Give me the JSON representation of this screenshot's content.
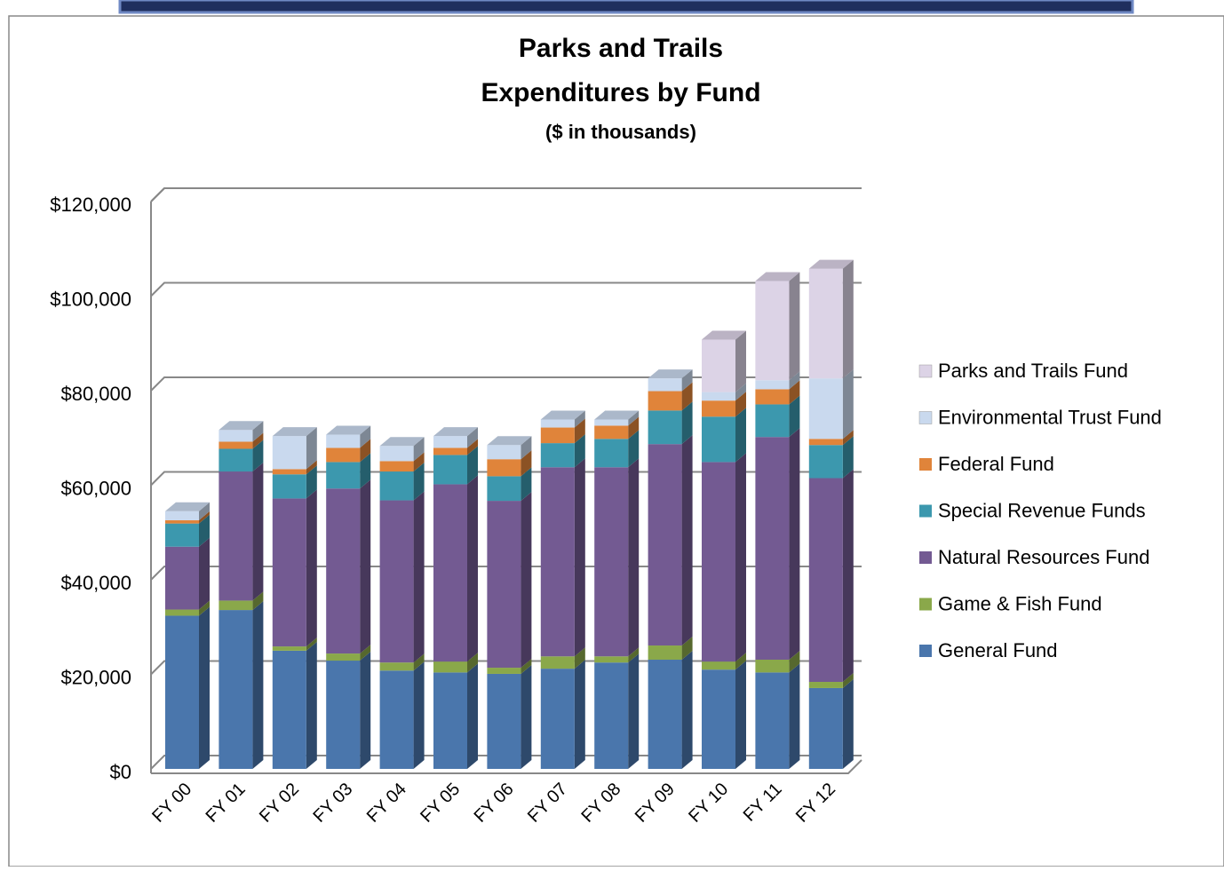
{
  "chart_data": {
    "type": "bar3d_stacked",
    "title": "Parks and Trails",
    "subtitle": "Expenditures by Fund",
    "annotation": "($ in thousands)",
    "categories": [
      "FY 00",
      "FY 01",
      "FY 02",
      "FY 03",
      "FY 04",
      "FY 05",
      "FY 06",
      "FY 07",
      "FY 08",
      "FY 09",
      "FY 10",
      "FY 11",
      "FY 12"
    ],
    "series": [
      {
        "name": "General Fund",
        "color": "#4a76ac",
        "values": [
          32400,
          33600,
          25000,
          22900,
          20800,
          20400,
          20100,
          21200,
          22500,
          23100,
          21000,
          20400,
          17100
        ]
      },
      {
        "name": "Game & Fish Fund",
        "color": "#8aa84a",
        "values": [
          1300,
          2000,
          900,
          1500,
          1700,
          2300,
          1300,
          2600,
          1300,
          3000,
          1700,
          2700,
          1300
        ]
      },
      {
        "name": "Natural Resources Fund",
        "color": "#735a92",
        "values": [
          13300,
          27300,
          31300,
          34900,
          34300,
          37500,
          35300,
          40000,
          40000,
          42600,
          42200,
          47100,
          43100
        ]
      },
      {
        "name": "Special Revenue Funds",
        "color": "#3c98ae",
        "values": [
          4900,
          4800,
          5100,
          5600,
          6100,
          6200,
          5200,
          5100,
          6000,
          7100,
          9600,
          6900,
          7000
        ]
      },
      {
        "name": "Federal Fund",
        "color": "#e0843a",
        "values": [
          700,
          1500,
          1100,
          3000,
          2200,
          1500,
          3600,
          3300,
          2800,
          4100,
          3400,
          3200,
          1300
        ]
      },
      {
        "name": "Environmental Trust Fund",
        "color": "#c9d9ee",
        "values": [
          1900,
          2500,
          7000,
          2800,
          3200,
          2500,
          3000,
          1700,
          1300,
          2700,
          1800,
          1900,
          12800
        ]
      },
      {
        "name": "Parks and Trails Fund",
        "color": "#dcd3e6",
        "values": [
          0,
          0,
          0,
          0,
          0,
          0,
          0,
          0,
          0,
          0,
          11100,
          21000,
          23200
        ]
      }
    ],
    "ylim": [
      0,
      120000
    ],
    "yticks": [
      {
        "value": 0,
        "label": "$0"
      },
      {
        "value": 20000,
        "label": "$20,000"
      },
      {
        "value": 40000,
        "label": "$40,000"
      },
      {
        "value": 60000,
        "label": "$60,000"
      },
      {
        "value": 80000,
        "label": "$80,000"
      },
      {
        "value": 100000,
        "label": "$100,000"
      },
      {
        "value": 120000,
        "label": "$120,000"
      }
    ],
    "grid": true,
    "legend": "right"
  }
}
